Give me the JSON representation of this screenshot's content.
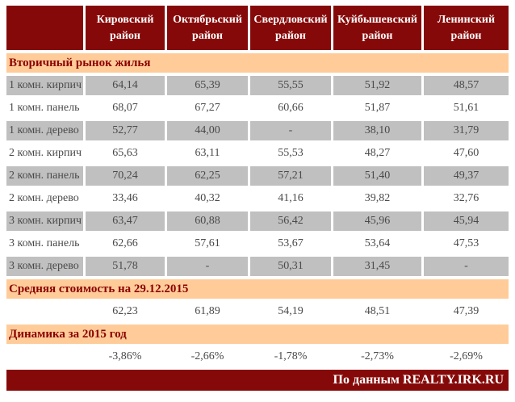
{
  "colors": {
    "header_bg": "#860909",
    "header_text": "#ffffff",
    "section_bg": "#FFCC99",
    "section_text": "#8B0000",
    "row_alt_bg": "#C0C0C0",
    "data_text": "#4a4a4a",
    "footer_bg": "#860909",
    "footer_text": "#ffffff"
  },
  "chart_data": {
    "type": "table",
    "columns": [
      "Кировский район",
      "Октябрьский район",
      "Свердловский район",
      "Куйбышевский район",
      "Ленинский район"
    ],
    "sections": [
      {
        "title": "Вторичный рынок жилья",
        "rows": [
          {
            "label": "1 комн. кирпич",
            "values": [
              "64,14",
              "65,39",
              "55,55",
              "51,92",
              "48,57"
            ]
          },
          {
            "label": "1 комн. панель",
            "values": [
              "68,07",
              "67,27",
              "60,66",
              "51,87",
              "51,61"
            ]
          },
          {
            "label": "1 комн. дерево",
            "values": [
              "52,77",
              "44,00",
              "-",
              "38,10",
              "31,79"
            ]
          },
          {
            "label": "2 комн. кирпич",
            "values": [
              "65,63",
              "63,11",
              "55,53",
              "48,27",
              "47,60"
            ]
          },
          {
            "label": "2 комн. панель",
            "values": [
              "70,24",
              "62,25",
              "57,21",
              "51,40",
              "49,37"
            ]
          },
          {
            "label": "2 комн. дерево",
            "values": [
              "33,46",
              "40,32",
              "41,16",
              "39,82",
              "32,76"
            ]
          },
          {
            "label": "3 комн. кирпич",
            "values": [
              "63,47",
              "60,88",
              "56,42",
              "45,96",
              "45,94"
            ]
          },
          {
            "label": "3 комн. панель",
            "values": [
              "62,66",
              "57,61",
              "53,67",
              "53,64",
              "47,53"
            ]
          },
          {
            "label": "3 комн. дерево",
            "values": [
              "51,78",
              "-",
              "50,31",
              "31,45",
              "-"
            ]
          }
        ]
      },
      {
        "title": "Средняя стоимость на 29.12.2015",
        "rows": [
          {
            "label": "",
            "values": [
              "62,23",
              "61,89",
              "54,19",
              "48,51",
              "47,39"
            ]
          }
        ]
      },
      {
        "title": "Динамика за 2015 год",
        "rows": [
          {
            "label": "",
            "values": [
              "-3,86%",
              "-2,66%",
              "-1,78%",
              "-2,73%",
              "-2,69%"
            ]
          }
        ]
      }
    ],
    "footer": "По данным REALTY.IRK.RU"
  }
}
